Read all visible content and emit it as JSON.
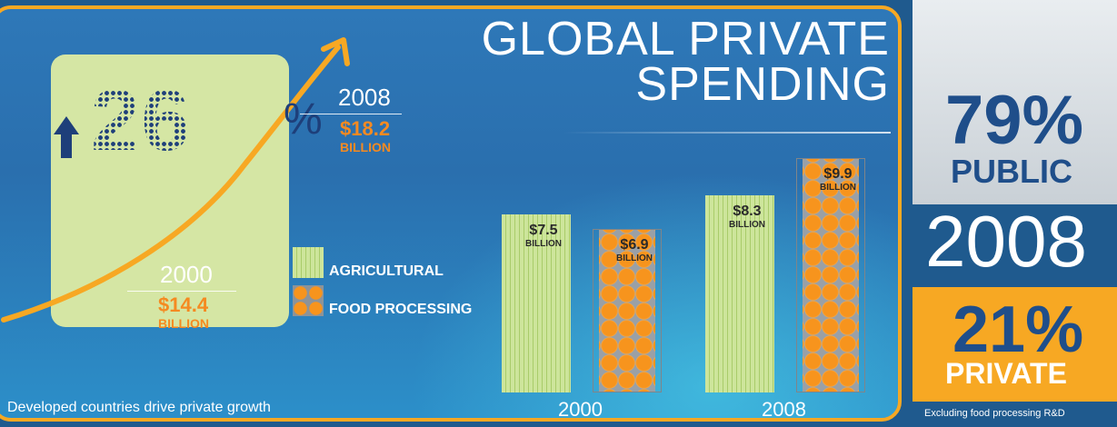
{
  "colors": {
    "background": "#1f5a8e",
    "panel_border": "#f7a823",
    "agricultural": "#cde59b",
    "food_processing": "#f7941d",
    "accent_blue": "#1f4e8a",
    "accent_orange": "#f58a21"
  },
  "title": {
    "line1": "GLOBAL PRIVATE",
    "line2": "SPENDING"
  },
  "growth": {
    "digits": "26",
    "percent_sign": "%",
    "arrow_icon": "up-arrow-icon",
    "start": {
      "year": "2000",
      "amount": "$14.4",
      "unit": "BILLION"
    },
    "end": {
      "year": "2008",
      "amount": "$18.2",
      "unit": "BILLION"
    }
  },
  "legend": {
    "items": [
      {
        "label": "AGRICULTURAL"
      },
      {
        "label": "FOOD PROCESSING"
      }
    ]
  },
  "footer": "Developed countries drive private growth",
  "chart_data": {
    "type": "bar",
    "categories": [
      "2000",
      "2008"
    ],
    "series": [
      {
        "name": "AGRICULTURAL",
        "values": [
          7.5,
          8.3
        ],
        "labels": [
          "$7.5",
          "$8.3"
        ]
      },
      {
        "name": "FOOD PROCESSING",
        "values": [
          6.9,
          9.9
        ],
        "labels": [
          "$6.9",
          "$9.9"
        ]
      }
    ],
    "unit_label": "BILLION",
    "grid": false,
    "legend_position": "left"
  },
  "right_panel": {
    "public_pct": "79%",
    "public_label": "PUBLIC",
    "year": "2008",
    "private_pct": "21%",
    "private_label": "PRIVATE",
    "note": "Excluding food processing R&D"
  }
}
